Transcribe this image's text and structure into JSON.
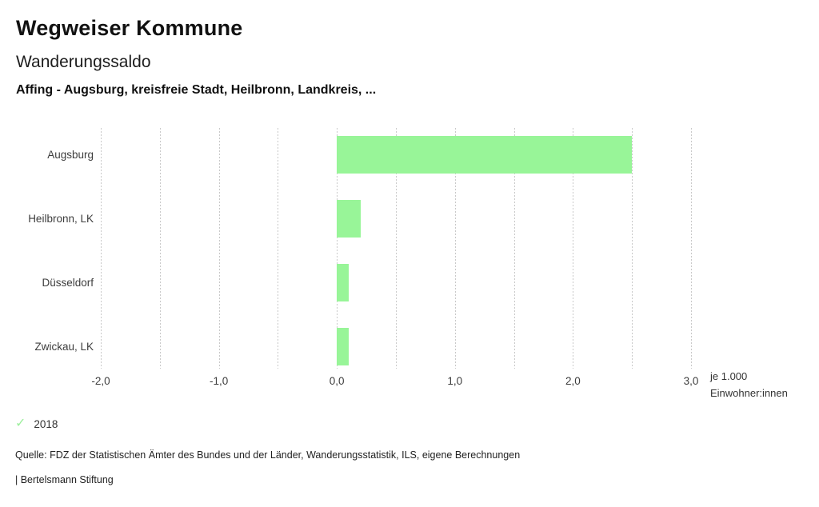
{
  "header": {
    "title": "Wegweiser Kommune",
    "subtitle": "Wanderungssaldo",
    "selection": "Affing - Augsburg, kreisfreie Stadt, Heilbronn, Landkreis, ..."
  },
  "chart_data": {
    "type": "bar",
    "orientation": "horizontal",
    "categories": [
      "Augsburg",
      "Heilbronn, LK",
      "Düsseldorf",
      "Zwickau, LK"
    ],
    "values": [
      2.5,
      0.2,
      0.1,
      0.1
    ],
    "series_name": "2018",
    "xlim": [
      -2.0,
      3.0
    ],
    "x_ticks": {
      "values": [
        -2,
        -1,
        0,
        1,
        2,
        3
      ],
      "labels": [
        "-2,0",
        "-1,0",
        "0,0",
        "1,0",
        "2,0",
        "3,0"
      ]
    },
    "gridline_step": 0.5,
    "grid": "dashed-vertical",
    "unit_line1": "je 1.000",
    "unit_line2": "Einwohner:innen",
    "bar_color": "#98f598",
    "grid_color": "#c9c9c9"
  },
  "legend": {
    "check_icon": "✓",
    "check_color": "#9cef9c",
    "year": "2018"
  },
  "footer": {
    "source": "Quelle: FDZ der Statistischen Ämter des Bundes und der Länder, Wanderungsstatistik, ILS, eigene Berechnungen",
    "brand": "| Bertelsmann Stiftung"
  }
}
